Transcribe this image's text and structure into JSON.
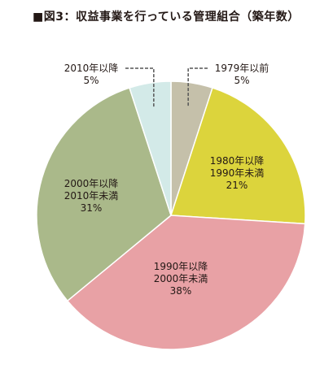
{
  "chart_data": {
    "type": "pie",
    "title": "■図3：収益事業を行っている管理組合（築年数）",
    "slices": [
      {
        "label_lines": [
          "1979年以前"
        ],
        "value": 5,
        "value_label": "5%",
        "color": "#c5c0aa"
      },
      {
        "label_lines": [
          "1980年以降",
          "1990年未満"
        ],
        "value": 21,
        "value_label": "21%",
        "color": "#dcd43c"
      },
      {
        "label_lines": [
          "1990年以降",
          "2000年未満"
        ],
        "value": 38,
        "value_label": "38%",
        "color": "#e8a1a5"
      },
      {
        "label_lines": [
          "2000年以降",
          "2010年未満"
        ],
        "value": 31,
        "value_label": "31%",
        "color": "#aab98a"
      },
      {
        "label_lines": [
          "2010年以降"
        ],
        "value": 5,
        "value_label": "5%",
        "color": "#d3eae8"
      }
    ]
  }
}
